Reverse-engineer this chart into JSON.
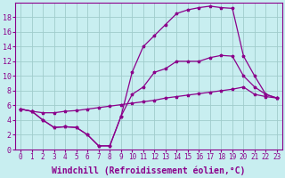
{
  "background_color": "#c8eef0",
  "grid_color": "#a0cccc",
  "line_color": "#8b008b",
  "marker": "*",
  "xlabel": "Windchill (Refroidissement éolien,°C)",
  "xlabel_fontsize": 7,
  "xtick_fontsize": 5.5,
  "ytick_fontsize": 6,
  "xlim": [
    -0.5,
    23.5
  ],
  "ylim": [
    0,
    20
  ],
  "yticks": [
    0,
    2,
    4,
    6,
    8,
    10,
    12,
    14,
    16,
    18
  ],
  "xticks": [
    0,
    1,
    2,
    3,
    4,
    5,
    6,
    7,
    8,
    9,
    10,
    11,
    12,
    13,
    14,
    15,
    16,
    17,
    18,
    19,
    20,
    21,
    22,
    23
  ],
  "curve_top_x": [
    0,
    1,
    2,
    3,
    4,
    5,
    6,
    7,
    8,
    9,
    10,
    11,
    12,
    13,
    14,
    15,
    16,
    17,
    18,
    19,
    20,
    21,
    22,
    23
  ],
  "curve_top_y": [
    5.5,
    5.2,
    4.0,
    3.0,
    3.1,
    3.0,
    2.0,
    0.5,
    0.5,
    4.5,
    10.5,
    14.0,
    15.5,
    17.0,
    18.5,
    19.0,
    19.3,
    19.5,
    19.3,
    19.2,
    12.7,
    10.0,
    7.5,
    7.0
  ],
  "curve_mid_x": [
    0,
    1,
    2,
    3,
    4,
    5,
    6,
    7,
    8,
    9,
    10,
    11,
    12,
    13,
    14,
    15,
    16,
    17,
    18,
    19,
    20,
    21,
    22,
    23
  ],
  "curve_mid_y": [
    5.5,
    5.2,
    4.0,
    3.0,
    3.1,
    3.0,
    2.0,
    0.5,
    0.5,
    4.5,
    7.5,
    8.5,
    10.5,
    11.0,
    12.0,
    12.0,
    12.0,
    12.5,
    12.8,
    12.7,
    10.0,
    8.5,
    7.5,
    7.0
  ],
  "curve_bot_x": [
    0,
    1,
    2,
    3,
    4,
    5,
    6,
    7,
    8,
    9,
    10,
    11,
    12,
    13,
    14,
    15,
    16,
    17,
    18,
    19,
    20,
    21,
    22,
    23
  ],
  "curve_bot_y": [
    5.5,
    5.2,
    5.0,
    5.0,
    5.2,
    5.3,
    5.5,
    5.7,
    5.9,
    6.1,
    6.3,
    6.5,
    6.7,
    7.0,
    7.2,
    7.4,
    7.6,
    7.8,
    8.0,
    8.2,
    8.5,
    7.5,
    7.2,
    7.0
  ]
}
